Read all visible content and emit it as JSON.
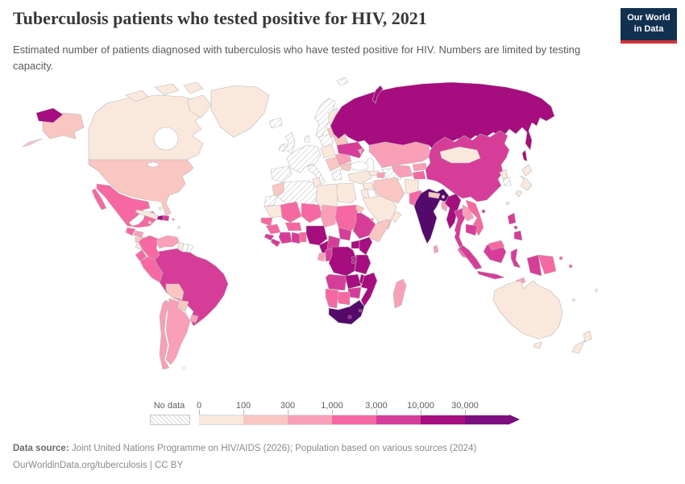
{
  "header": {
    "title": "Tuberculosis patients who tested positive for HIV, 2021",
    "subtitle": "Estimated number of patients diagnosed with tuberculosis who have tested positive for HIV. Numbers are limited by testing capacity.",
    "logo": {
      "line1": "Our World",
      "line2": "in Data",
      "bg_color": "#12304f",
      "accent_color": "#d13239"
    }
  },
  "legend": {
    "no_data_label": "No data",
    "tick_labels": [
      "0",
      "100",
      "300",
      "1,000",
      "3,000",
      "10,000",
      "30,000"
    ],
    "bin_colors": [
      "#fbe8dd",
      "#f9c6c2",
      "#f99fb8",
      "#f668a2",
      "#d63d99",
      "#a60d7e",
      "#7c0e7f"
    ],
    "over_color": "#540a6b",
    "no_data_pattern": "diagonal-hatch"
  },
  "footer": {
    "source_label": "Data source:",
    "source_text": " Joint United Nations Programme on HIV/AIDS (2026); Population based on various sources (2024)",
    "license_line": "OurWorldinData.org/tuberculosis | CC BY"
  },
  "chart_data": {
    "type": "choropleth_map",
    "title": "Tuberculosis patients who tested positive for HIV",
    "year": 2021,
    "unit": "patients",
    "scale": "log-binned",
    "bin_edges": [
      0,
      100,
      300,
      1000,
      3000,
      10000,
      30000
    ],
    "legend_note": "bin 0 = no data (hatched), bins 1-7 map to bin_colors, 8 = above 30,000 (over_color), -1 = shown white",
    "countries": {
      "canada": 1,
      "greenland": 1,
      "united_states": 2,
      "mexico": 4,
      "guatemala": 4,
      "belize": 1,
      "honduras": 3,
      "nicaragua": 2,
      "costa_rica": 1,
      "panama": 2,
      "cuba": 1,
      "jamaica": 2,
      "haiti": 6,
      "dominican_republic": 5,
      "puerto_rico": 3,
      "bahamas": 1,
      "lesser_antilles": 1,
      "colombia": 4,
      "venezuela": 3,
      "guyana": 1,
      "suriname": -1,
      "french_guiana": -1,
      "ecuador": 4,
      "peru": 4,
      "brazil": 5,
      "bolivia": 2,
      "paraguay": 2,
      "chile": 3,
      "argentina": 3,
      "uruguay": 3,
      "falkland_islands": -1,
      "iceland": 0,
      "united_kingdom": 0,
      "ireland": 0,
      "norway_sweden": 0,
      "finland": 1,
      "denmark": 0,
      "western_europe": 0,
      "iberia": 0,
      "italy": 0,
      "poland": 0,
      "czechia_hungary": 1,
      "balkans": 2,
      "greece": 0,
      "romania": 3,
      "bulgaria": 2,
      "baltics": 2,
      "belarus": 2,
      "ukraine": 5,
      "moldova": 3,
      "svalbard": 0,
      "novaya_zemlya": 6,
      "russia": 6,
      "kazakhstan": 3,
      "turkmenistan": 0,
      "uzbekistan": 3,
      "kyrgyzstan": 3,
      "tajikistan": 4,
      "georgia": 1,
      "azerbaijan": 3,
      "turkey": 1,
      "syria": 1,
      "iraq": 1,
      "jordan_israel": 1,
      "saudi_arabia": 1,
      "yemen": 2,
      "oman": 1,
      "iran": 2,
      "afghanistan": 1,
      "pakistan": 4,
      "india": 8,
      "nepal": 2,
      "bhutan": 2,
      "bangladesh": 3,
      "sri_lanka": 3,
      "myanmar": 6,
      "china": 5,
      "mongolia": 1,
      "north_korea": 1,
      "south_korea": 0,
      "japan": 1,
      "taiwan": 1,
      "hainan": 5,
      "thailand": 5,
      "laos": 3,
      "vietnam": 4,
      "cambodia": 5,
      "malaysia": 4,
      "indonesia": 5,
      "philippines": 5,
      "papua_new_guinea": 4,
      "timor_leste": 3,
      "solomon_islands": 4,
      "morocco": 2,
      "western_sahara": 0,
      "algeria": 0,
      "tunisia": 1,
      "libya": 1,
      "egypt": 1,
      "mauritania": 1,
      "mali": 4,
      "niger": 4,
      "chad": 3,
      "sudan": 4,
      "eritrea": 2,
      "djibouti": 3,
      "senegal": 4,
      "guinea": 4,
      "sierra_leone": 5,
      "liberia": 5,
      "cote_divoire": 5,
      "ghana": 5,
      "togo_benin": 4,
      "burkina_faso": 4,
      "nigeria": 6,
      "cameroon": 6,
      "central_african_republic": 5,
      "south_sudan": 5,
      "ethiopia": 5,
      "somalia": 2,
      "gabon": 3,
      "congo": 5,
      "dr_congo": 6,
      "uganda": 6,
      "kenya": 6,
      "rwanda": 6,
      "burundi": 6,
      "tanzania": 6,
      "angola": 5,
      "zambia": 6,
      "malawi": 6,
      "mozambique": 6,
      "zimbabwe": 5,
      "botswana": 4,
      "namibia": 4,
      "south_africa": 8,
      "lesotho": 6,
      "eswatini": 6,
      "madagascar": 3,
      "australia": 1,
      "tasmania": 1,
      "new_zealand": 1,
      "fiji": 1,
      "new_caledonia": 1
    }
  }
}
